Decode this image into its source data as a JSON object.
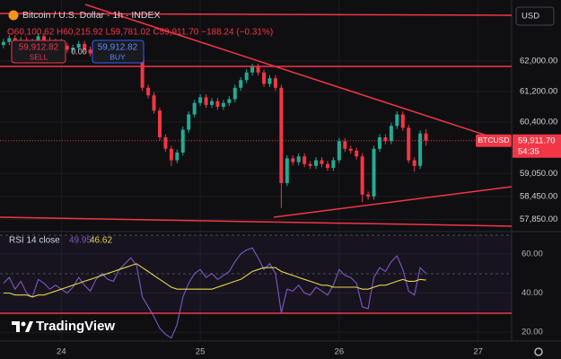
{
  "chart_data": {
    "type": "candlestick",
    "symbol": "Bitcoin / U.S. Dollar · 1h · INDEX",
    "legend_values": "O60,100.62 H60,215.92 L59,781.02 C59,911.70 −188.24 (−0.31%)",
    "sell_price": "59,912.82",
    "sell_label": "SELL",
    "spread": "0.00",
    "buy_price": "59,912.82",
    "buy_label": "BUY",
    "currency": "USD",
    "symbol_tag": "BTCUSD",
    "last_price": {
      "value": 59911.7,
      "label": "59,911.70"
    },
    "countdown": "54:35",
    "brand": "TradingView",
    "up_color": "#22ab94",
    "down_color": "#f23645",
    "xlim": [
      -10.6,
      77.8
    ],
    "xticks": [
      {
        "value": 0,
        "label": "24"
      },
      {
        "value": 24,
        "label": "25"
      },
      {
        "value": 48,
        "label": "26"
      },
      {
        "value": 72,
        "label": "27"
      }
    ],
    "ylim": [
      57530,
      63600
    ],
    "yticks": [
      {
        "value": 62000,
        "label": "62,000.00"
      },
      {
        "value": 61200,
        "label": "61,200.00"
      },
      {
        "value": 60400,
        "label": "60,400.00"
      },
      {
        "value": 59050,
        "label": "59,050.00"
      },
      {
        "value": 58450,
        "label": "58,450.00"
      },
      {
        "value": 57850,
        "label": "57,850.00"
      }
    ],
    "grid": true,
    "x": [
      -10,
      -9,
      -8,
      -7,
      -6,
      -5,
      -4,
      -3,
      -2,
      -1,
      0,
      1,
      2,
      3,
      4,
      5,
      6,
      7,
      8,
      9,
      10,
      11,
      12,
      13,
      14,
      15,
      16,
      17,
      18,
      19,
      20,
      21,
      22,
      23,
      24,
      25,
      26,
      27,
      28,
      29,
      30,
      31,
      32,
      33,
      34,
      35,
      36,
      37,
      38,
      39,
      40,
      41,
      42,
      43,
      44,
      45,
      46,
      47,
      48,
      49,
      50,
      51,
      52,
      53,
      54,
      55,
      56,
      57,
      58,
      59,
      60,
      61,
      62,
      63
    ],
    "open": [
      62420,
      62500,
      62600,
      62450,
      62550,
      62400,
      62500,
      62650,
      62550,
      62450,
      62500,
      62400,
      62300,
      62350,
      62450,
      62300,
      62200,
      62350,
      62400,
      62300,
      62250,
      62350,
      62300,
      62150,
      62100,
      61300,
      61100,
      60700,
      60000,
      59700,
      59400,
      59600,
      60200,
      60600,
      60900,
      61050,
      60850,
      60950,
      60800,
      60900,
      61000,
      61300,
      61500,
      61700,
      61850,
      61700,
      61400,
      61550,
      61300,
      58800,
      59450,
      59350,
      59500,
      59300,
      59250,
      59400,
      59300,
      59200,
      59400,
      59900,
      59700,
      59650,
      59500,
      58500,
      58450,
      59700,
      60000,
      59900,
      60300,
      60600,
      60250,
      59400,
      59250,
      60100.62
    ],
    "high": [
      62580,
      62680,
      62680,
      62630,
      62630,
      62580,
      62730,
      62730,
      62630,
      62580,
      62580,
      62480,
      62430,
      62530,
      62530,
      62380,
      62430,
      62480,
      62480,
      62380,
      62430,
      62430,
      62380,
      62230,
      62180,
      61380,
      61180,
      60780,
      60080,
      59780,
      59680,
      60280,
      60680,
      60980,
      61130,
      61130,
      61030,
      61030,
      60980,
      61080,
      61380,
      61580,
      61780,
      61930,
      61930,
      61780,
      61630,
      61630,
      61380,
      59530,
      59530,
      59580,
      59580,
      59380,
      59480,
      59480,
      59380,
      59480,
      59980,
      59980,
      59780,
      59730,
      59580,
      58580,
      59780,
      60080,
      60080,
      60380,
      60680,
      60680,
      60330,
      59480,
      60180,
      60215.92
    ],
    "low": [
      62340,
      62420,
      62370,
      62370,
      62320,
      62320,
      62420,
      62470,
      62370,
      62370,
      62320,
      62220,
      62220,
      62270,
      62220,
      62120,
      62120,
      62270,
      62220,
      62170,
      62170,
      62220,
      62070,
      62020,
      61220,
      61020,
      60620,
      59920,
      59620,
      59250,
      59320,
      59520,
      60120,
      60520,
      60820,
      60770,
      60770,
      60720,
      60720,
      60820,
      60920,
      61220,
      61420,
      61620,
      61620,
      61320,
      61320,
      61220,
      58150,
      58720,
      59270,
      59270,
      59220,
      59170,
      59170,
      59220,
      59120,
      59120,
      59320,
      59620,
      59570,
      59420,
      58300,
      58370,
      58370,
      59620,
      59820,
      59820,
      60220,
      60170,
      59320,
      59100,
      59170,
      59781.02
    ],
    "close": [
      62500,
      62600,
      62450,
      62550,
      62400,
      62500,
      62650,
      62550,
      62450,
      62500,
      62400,
      62300,
      62350,
      62450,
      62300,
      62200,
      62350,
      62400,
      62300,
      62250,
      62350,
      62300,
      62150,
      62100,
      61300,
      61100,
      60700,
      60000,
      59700,
      59400,
      59600,
      60200,
      60600,
      60900,
      61050,
      60850,
      60950,
      60800,
      60900,
      61000,
      61300,
      61500,
      61700,
      61850,
      61700,
      61400,
      61550,
      61300,
      58800,
      59450,
      59350,
      59500,
      59300,
      59250,
      59400,
      59300,
      59200,
      59400,
      59900,
      59700,
      59650,
      59500,
      58500,
      58450,
      59700,
      60000,
      59900,
      60300,
      60600,
      60250,
      59400,
      59250,
      60100,
      59911.7
    ],
    "indicator": {
      "type": "line",
      "label": "RSI 14 close",
      "ylim": [
        15.5,
        71.4
      ],
      "yticks": [
        {
          "value": 60,
          "label": "60.00"
        },
        {
          "value": 40,
          "label": "40.00"
        },
        {
          "value": 20,
          "label": "20.00"
        }
      ],
      "series": [
        {
          "color": "#7e57c2",
          "last_label": "49.95",
          "values": [
            45,
            48,
            42,
            46,
            40,
            38,
            47,
            45,
            42,
            44,
            42,
            40,
            43,
            48,
            44,
            41,
            47,
            50,
            47,
            46,
            52,
            55,
            58,
            54,
            38,
            33,
            28,
            22,
            19,
            17,
            24,
            38,
            45,
            50,
            52,
            48,
            50,
            47,
            49,
            51,
            56,
            60,
            62,
            63,
            58,
            52,
            55,
            50,
            30,
            42,
            41,
            44,
            40,
            39,
            43,
            41,
            39,
            44,
            52,
            49,
            48,
            45,
            33,
            32,
            48,
            53,
            51,
            56,
            59,
            52,
            41,
            39,
            53,
            49.95
          ]
        },
        {
          "color": "#e8d44d",
          "last_label": "46.62",
          "values": [
            40,
            40,
            39,
            39,
            39,
            38,
            39,
            39,
            40,
            41,
            42,
            43,
            44,
            45,
            46,
            47,
            48,
            49,
            50,
            51,
            52,
            53,
            54,
            55,
            53,
            51,
            49,
            47,
            45,
            43,
            42,
            42,
            42,
            42,
            42,
            42,
            42,
            43,
            44,
            45,
            46,
            47,
            49,
            51,
            52,
            53,
            53,
            53,
            51,
            50,
            49,
            48,
            47,
            46,
            45,
            44,
            44,
            43,
            43,
            43,
            43,
            43,
            42,
            42,
            43,
            44,
            44,
            45,
            46,
            47,
            46,
            46,
            47,
            46.62
          ]
        }
      ]
    }
  }
}
